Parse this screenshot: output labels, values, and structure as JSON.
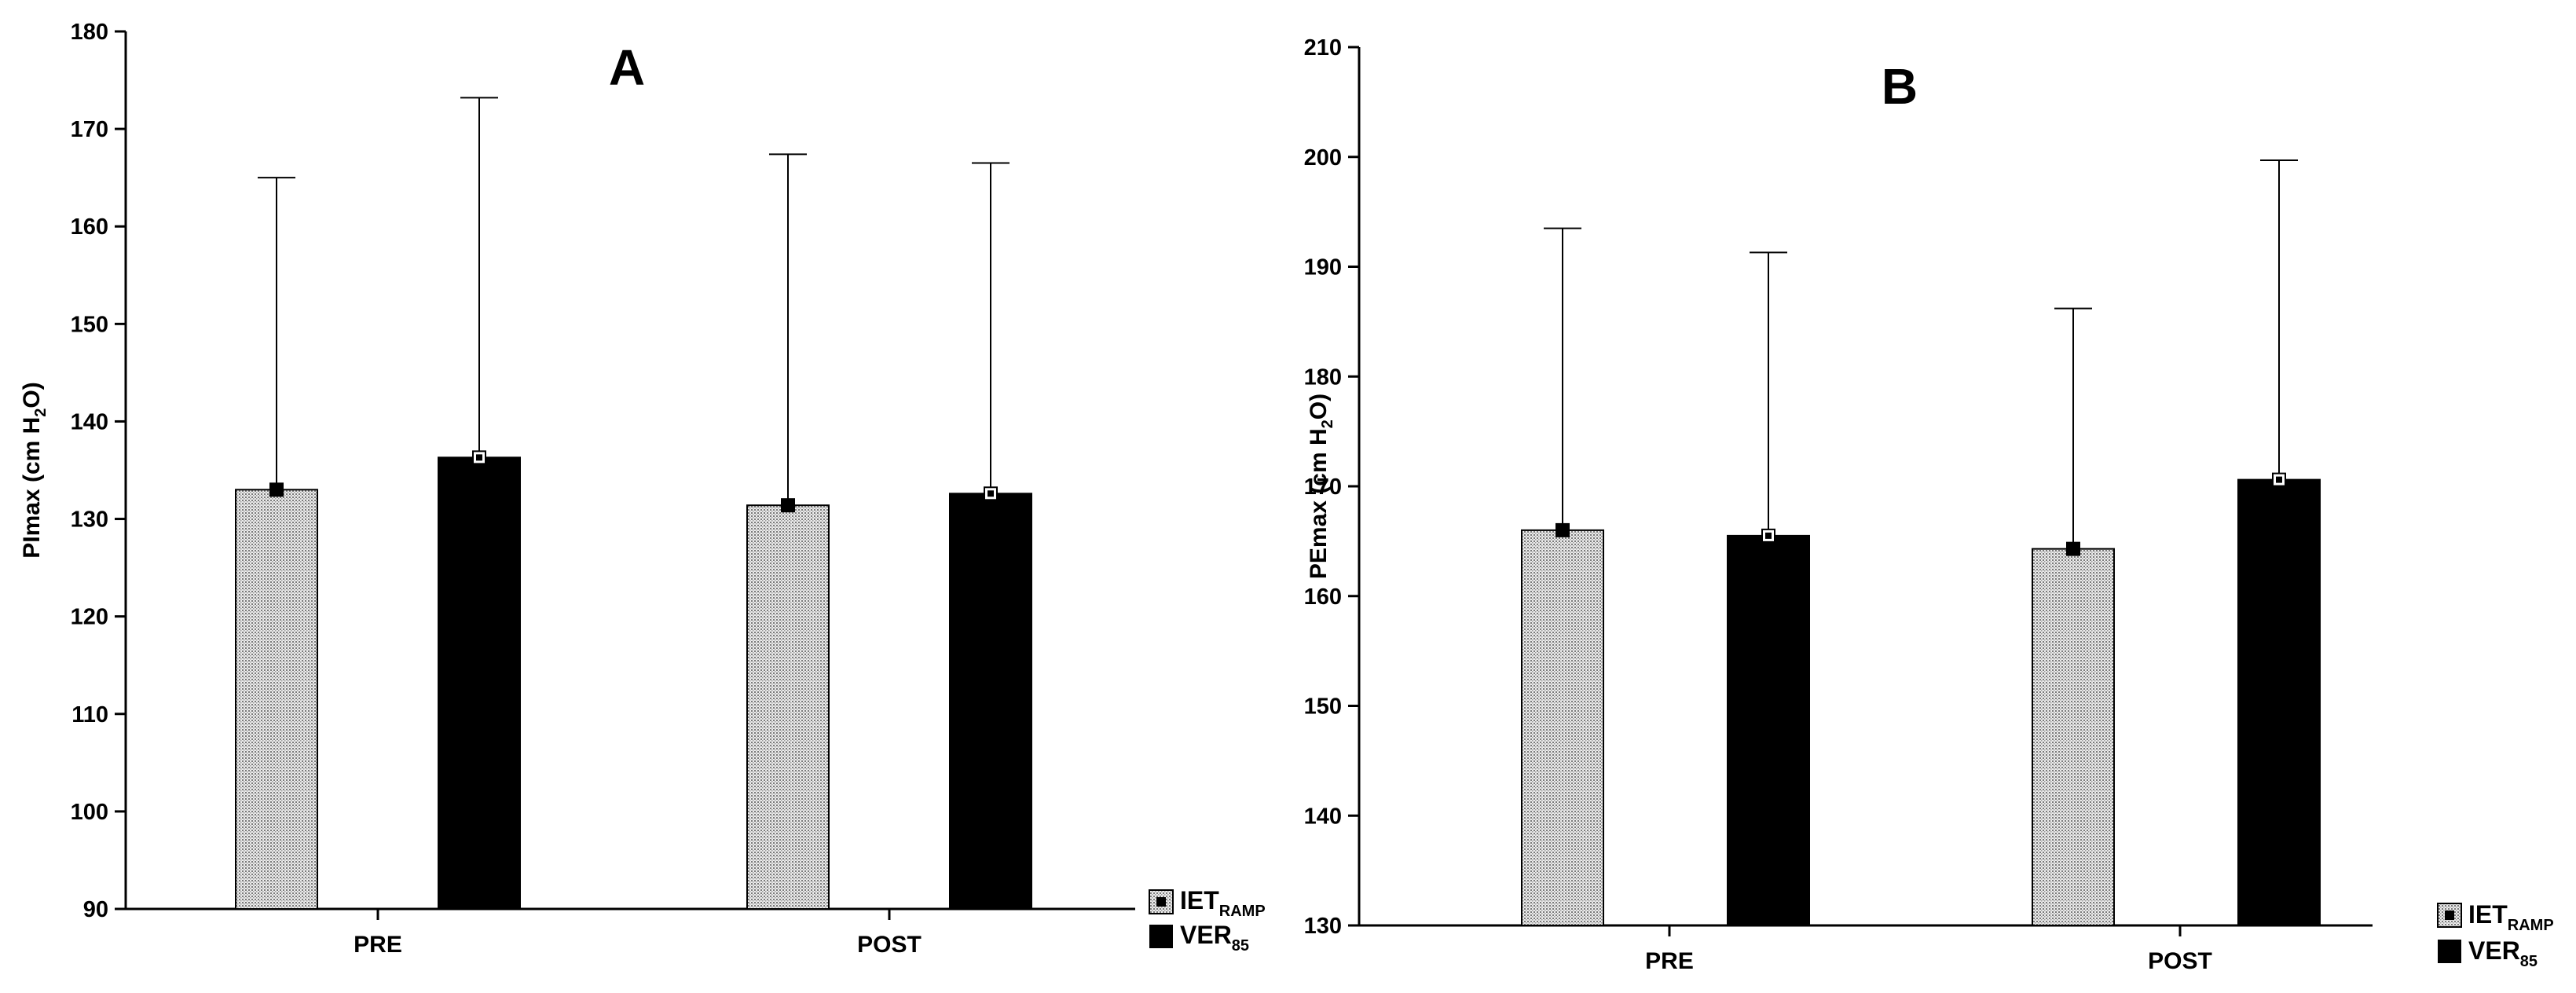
{
  "chart_data": [
    {
      "type": "bar",
      "title": "A",
      "xlabel": "",
      "ylabel": "PImax (cm H2O)",
      "ylabel_parts": {
        "pre": "PImax (cm H",
        "sub": "2",
        "post": "O)"
      },
      "categories": [
        "PRE",
        "POST"
      ],
      "ylim": [
        90,
        180
      ],
      "yticks": [
        90,
        100,
        110,
        120,
        130,
        140,
        150,
        160,
        170,
        180
      ],
      "grid": false,
      "legend_position": "bottom-right",
      "series": [
        {
          "name": "IETRAMP",
          "label_main": "IET",
          "label_sub": "RAMP",
          "fill": "dotted-gray",
          "values": [
            133.0,
            131.4
          ],
          "error_upper": [
            165.0,
            167.4
          ]
        },
        {
          "name": "VER85",
          "label_main": "VER",
          "label_sub": "85",
          "fill": "black",
          "values": [
            136.3,
            132.6
          ],
          "error_upper": [
            173.2,
            166.5
          ]
        }
      ]
    },
    {
      "type": "bar",
      "title": "B",
      "xlabel": "",
      "ylabel": "PEmax (cm H2O)",
      "ylabel_parts": {
        "pre": "PEmax (cm H",
        "sub": "2",
        "post": "O)"
      },
      "categories": [
        "PRE",
        "POST"
      ],
      "ylim": [
        130,
        210
      ],
      "yticks": [
        130,
        140,
        150,
        160,
        170,
        180,
        190,
        200,
        210
      ],
      "grid": false,
      "legend_position": "bottom-right",
      "series": [
        {
          "name": "IETRAMP",
          "label_main": "IET",
          "label_sub": "RAMP",
          "fill": "dotted-gray",
          "values": [
            166.0,
            164.3
          ],
          "error_upper": [
            193.5,
            186.2
          ]
        },
        {
          "name": "VER85",
          "label_main": "VER",
          "label_sub": "85",
          "fill": "black",
          "values": [
            165.5,
            170.6
          ],
          "error_upper": [
            191.3,
            199.7
          ]
        }
      ]
    }
  ],
  "colors": {
    "axis": "#000000",
    "pattern_light": "#ececec",
    "pattern_dark": "#7a7a7a",
    "bar_dark": "#000000"
  }
}
